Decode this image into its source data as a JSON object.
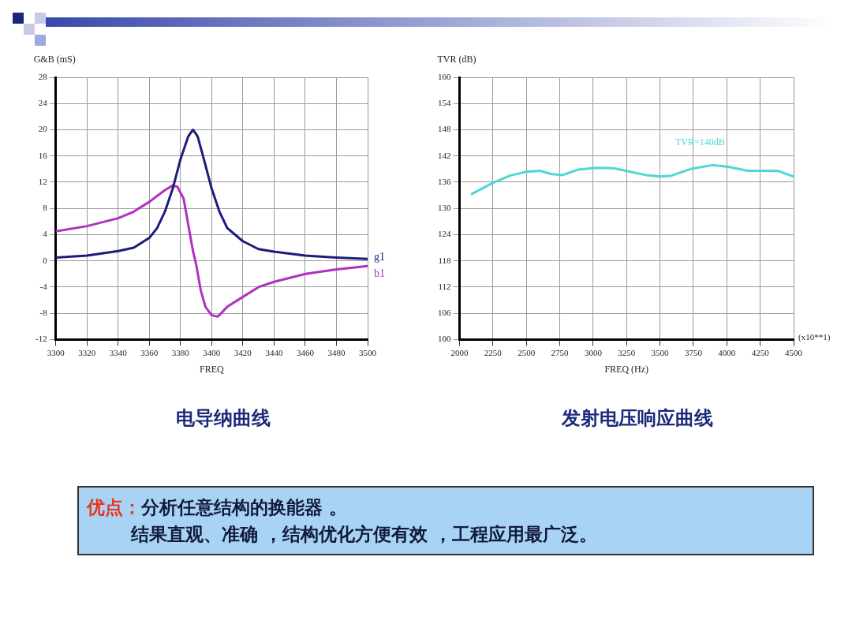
{
  "chart_data": [
    {
      "type": "line",
      "title": "电导纳曲线",
      "ylabel": "G&B (mS)",
      "xlabel": "FREQ",
      "xlim": [
        3300,
        3500
      ],
      "xticks": [
        3300,
        3320,
        3340,
        3360,
        3380,
        3400,
        3420,
        3440,
        3460,
        3480,
        3500
      ],
      "ylim": [
        -12,
        28
      ],
      "yticks": [
        -12,
        -8,
        -4,
        0,
        4,
        8,
        12,
        16,
        20,
        24,
        28
      ],
      "grid": true,
      "series": [
        {
          "name": "g1",
          "color": "#1c1c7a",
          "x": [
            3300,
            3320,
            3340,
            3350,
            3360,
            3365,
            3370,
            3375,
            3380,
            3385,
            3388,
            3391,
            3395,
            3400,
            3405,
            3410,
            3420,
            3430,
            3440,
            3460,
            3480,
            3500
          ],
          "values": [
            0.5,
            0.8,
            1.5,
            2.0,
            3.5,
            5,
            7.5,
            11,
            15.5,
            19,
            20,
            19,
            15.5,
            11,
            7.5,
            5,
            3,
            1.8,
            1.4,
            0.8,
            0.5,
            0.3
          ]
        },
        {
          "name": "b1",
          "color": "#b030c0",
          "x": [
            3300,
            3320,
            3340,
            3350,
            3360,
            3370,
            3375,
            3378,
            3382,
            3385,
            3388,
            3390,
            3393,
            3396,
            3400,
            3404,
            3410,
            3420,
            3430,
            3440,
            3460,
            3480,
            3500
          ],
          "values": [
            4.5,
            5.3,
            6.5,
            7.5,
            9,
            10.8,
            11.5,
            11.3,
            9.5,
            5.5,
            1.5,
            -0.5,
            -4.5,
            -7,
            -8.3,
            -8.5,
            -7,
            -5.5,
            -4,
            -3.2,
            -2,
            -1.3,
            -0.8
          ]
        }
      ]
    },
    {
      "type": "line",
      "title": "发射电压响应曲线",
      "ylabel": "TVR (dB)",
      "xlabel": "FREQ (Hz)",
      "xlim": [
        2000,
        4500
      ],
      "xticks": [
        2000,
        2250,
        2500,
        2750,
        3000,
        3250,
        3500,
        3750,
        4000,
        4250,
        4500
      ],
      "ylim": [
        100,
        160
      ],
      "yticks": [
        100,
        106,
        112,
        118,
        124,
        130,
        136,
        142,
        148,
        154,
        160
      ],
      "grid": true,
      "annotations": [
        "TVR=140dB",
        "(x10**1)"
      ],
      "series": [
        {
          "color": "#4fd6d6",
          "x": [
            2092,
            2245,
            2378,
            2500,
            2603,
            2685,
            2767,
            2890,
            3012,
            3155,
            3278,
            3400,
            3503,
            3585,
            3727,
            3890,
            4013,
            4157,
            4382,
            4500
          ],
          "values": [
            133.3,
            135.8,
            137.5,
            138.4,
            138.6,
            137.9,
            137.6,
            138.9,
            139.3,
            139.2,
            138.4,
            137.6,
            137.3,
            137.5,
            139.0,
            139.9,
            139.5,
            138.6,
            138.6,
            137.3
          ]
        }
      ]
    },
    {
      "type": "other",
      "title": "优点：",
      "annotations": [
        "分析任意结构的换能器 。",
        "结果直观、准确 ，结构优化方便有效 ，工程应用最广泛。"
      ]
    }
  ]
}
